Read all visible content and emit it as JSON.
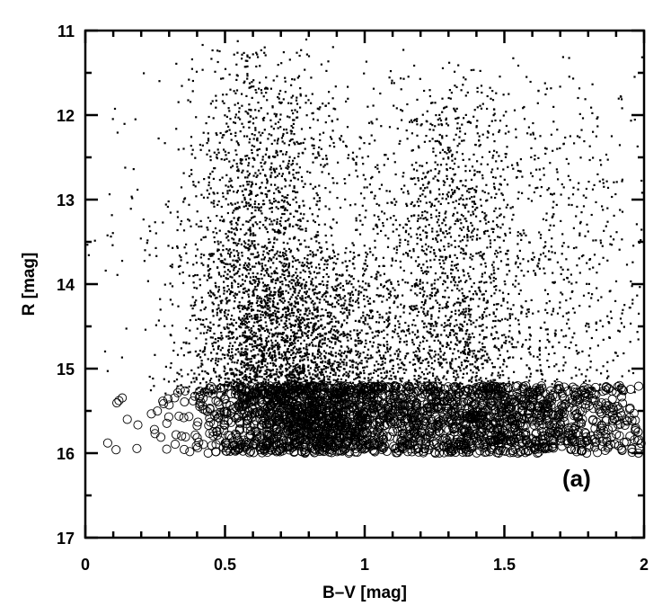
{
  "chart_data": {
    "type": "scatter",
    "xlabel": "B–V [mag]",
    "ylabel": "R [mag]",
    "xlim": [
      0,
      2
    ],
    "ylim": [
      17,
      11
    ],
    "y_inverted": true,
    "x_ticks": [
      "0",
      "0.5",
      "1",
      "1.5",
      "2"
    ],
    "y_ticks": [
      "11",
      "12",
      "13",
      "14",
      "15",
      "16",
      "17"
    ],
    "annotation": "(a)",
    "grid": false,
    "legend": "none",
    "colors": {
      "points": "#000000",
      "axes": "#000000"
    },
    "series": [
      {
        "marker": "dot",
        "description_values": "dense field of small filled points, R from about 11 to 15.3 mag",
        "clusters": [
          {
            "x_center": 0.62,
            "x_spread": 0.13,
            "y_min": 11.1,
            "y_max": 15.3,
            "weight": 0.32
          },
          {
            "x_center": 0.82,
            "x_spread": 0.18,
            "y_min": 13.5,
            "y_max": 15.3,
            "weight": 0.22
          },
          {
            "x_center": 1.32,
            "x_spread": 0.12,
            "y_min": 11.4,
            "y_max": 15.3,
            "weight": 0.18
          },
          {
            "x_center": 1.05,
            "x_spread": 0.45,
            "y_min": 11.1,
            "y_max": 15.3,
            "weight": 0.2
          },
          {
            "x_center": 1.75,
            "x_spread": 0.22,
            "y_min": 11.2,
            "y_max": 15.3,
            "weight": 0.08
          }
        ],
        "approx_count": 6200
      },
      {
        "marker": "open-circle",
        "description_values": "open circles for faint stars, R from about 15.2 to 16 mag",
        "clusters": [
          {
            "x_center": 0.8,
            "x_spread": 0.22,
            "y_min": 15.2,
            "y_max": 16.0,
            "weight": 0.55
          },
          {
            "x_center": 1.4,
            "x_spread": 0.2,
            "y_min": 15.2,
            "y_max": 16.0,
            "weight": 0.33
          },
          {
            "x_center": 1.8,
            "x_spread": 0.15,
            "y_min": 15.2,
            "y_max": 16.0,
            "weight": 0.12
          }
        ],
        "approx_count": 2400,
        "outliers": [
          {
            "x": 0.08,
            "y": 15.88
          },
          {
            "x": 0.11,
            "y": 15.96
          },
          {
            "x": 0.15,
            "y": 15.6
          },
          {
            "x": 0.3,
            "y": 15.43
          },
          {
            "x": 0.34,
            "y": 15.25
          },
          {
            "x": 1.97,
            "y": 15.7
          },
          {
            "x": 1.98,
            "y": 16.0
          }
        ]
      }
    ]
  }
}
